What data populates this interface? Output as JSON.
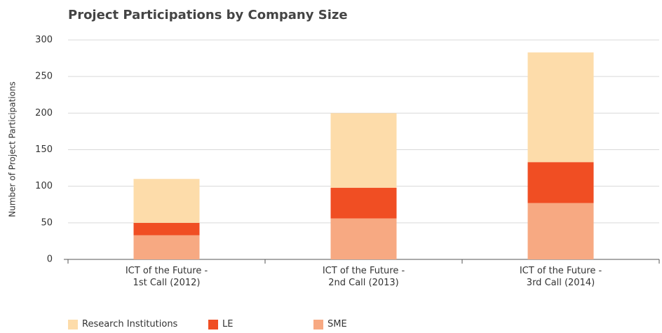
{
  "chart_data": {
    "type": "bar",
    "stacked": true,
    "title": "Project Participations by Company Size",
    "ylabel": "Number of Project Participations",
    "categories": [
      "ICT of the Future -\n1st Call (2012)",
      "ICT of the Future -\n2nd Call (2013)",
      "ICT of the Future -\n3rd Call (2014)"
    ],
    "series": [
      {
        "name": "SME",
        "color": "#f7a982",
        "values": [
          33,
          56,
          77
        ]
      },
      {
        "name": "LE",
        "color": "#f04e23",
        "values": [
          17,
          42,
          56
        ]
      },
      {
        "name": "Research Institutions",
        "color": "#fddcaa",
        "values": [
          60,
          102,
          150
        ]
      }
    ],
    "legend_order": [
      "Research Institutions",
      "LE",
      "SME"
    ],
    "ylim": [
      0,
      300
    ],
    "yticks": [
      0,
      50,
      100,
      150,
      200,
      250,
      300
    ],
    "grid": true,
    "legend": "bottom-left"
  }
}
